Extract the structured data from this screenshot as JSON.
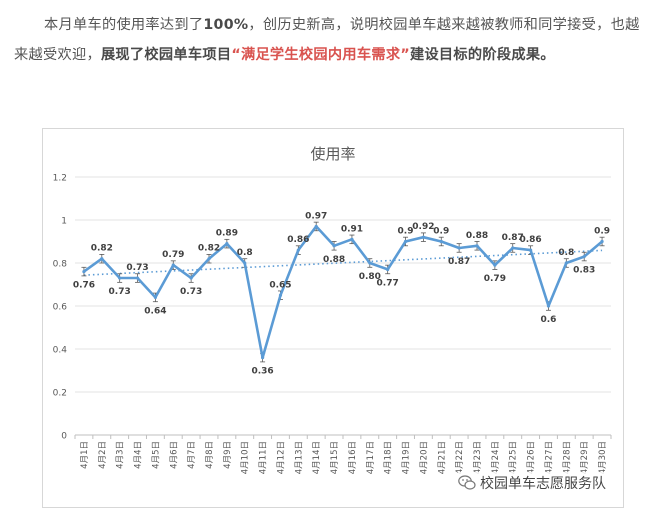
{
  "article": {
    "segments": [
      "本月单车的使用率达到了",
      "100%",
      "，创历史新高，说明校园单车越来越被教师和同学接受，也越来越受欢迎，",
      "展现了校园单车项目",
      "“满足学生校园内用车需求”",
      "建设目标的阶段成果。"
    ]
  },
  "chart_data": {
    "type": "line",
    "title": "使用率",
    "xlabel": "",
    "ylabel": "",
    "ylim": [
      0,
      1.2
    ],
    "yticks": [
      "0",
      "0.2",
      "0.4",
      "0.6",
      "0.8",
      "1",
      "1.2"
    ],
    "grid": true,
    "legend": "none",
    "categories": [
      "4月1日",
      "4月2日",
      "4月3日",
      "4月4日",
      "4月5日",
      "4月6日",
      "4月7日",
      "4月8日",
      "4月9日",
      "4月10日",
      "4月11日",
      "4月12日",
      "4月13日",
      "4月14日",
      "4月15日",
      "4月16日",
      "4月17日",
      "4月18日",
      "4月19日",
      "4月20日",
      "4月21日",
      "4月22日",
      "4月23日",
      "4月24日",
      "4月25日",
      "4月26日",
      "4月27日",
      "4月28日",
      "4月29日",
      "4月30日"
    ],
    "series": [
      {
        "values": [
          0.76,
          0.82,
          0.73,
          0.73,
          0.64,
          0.79,
          0.73,
          0.82,
          0.89,
          0.8,
          0.36,
          0.65,
          0.86,
          0.97,
          0.88,
          0.91,
          0.8,
          0.77,
          0.9,
          0.92,
          0.9,
          0.87,
          0.88,
          0.79,
          0.87,
          0.86,
          0.6,
          0.8,
          0.83,
          0.9
        ],
        "labels": [
          "0.76",
          "0.82",
          "0.73",
          "0.73",
          "0.64",
          "0.79",
          "0.73",
          "0.82",
          "0.89",
          "0.8",
          "0.36",
          "0.65",
          "0.86",
          "0.97",
          "0.88",
          "0.91",
          "0.80",
          "0.77",
          "0.9",
          "0.92",
          "0.9",
          "0.87",
          "0.88",
          "0.79",
          "0.87",
          "0.86",
          "0.6",
          "0.8",
          "0.83",
          "0.9"
        ],
        "color": "#5b9bd5",
        "trendline": "linear",
        "error_bars": true
      }
    ]
  },
  "watermark": {
    "text": "校园单车志愿服务队"
  }
}
